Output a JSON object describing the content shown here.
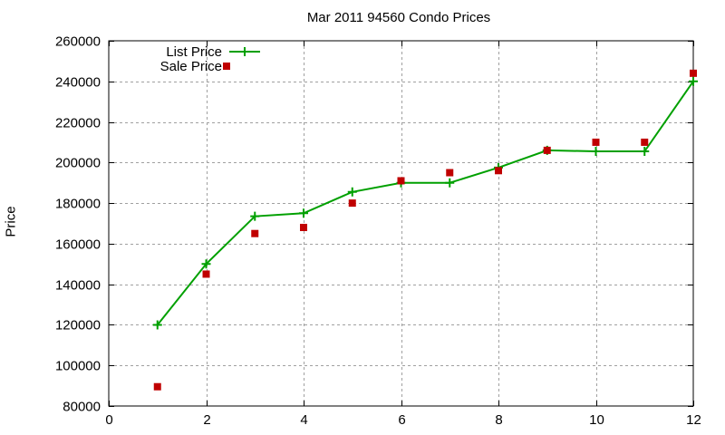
{
  "chart_data": {
    "type": "line",
    "title": "Mar 2011 94560 Condo Prices",
    "xlabel": "",
    "ylabel": "Price",
    "xlim": [
      0,
      12
    ],
    "ylim": [
      80000,
      260000
    ],
    "xticks": [
      0,
      2,
      4,
      6,
      8,
      10,
      12
    ],
    "yticks": [
      80000,
      100000,
      120000,
      140000,
      160000,
      180000,
      200000,
      220000,
      240000,
      260000
    ],
    "grid": true,
    "legend_position": "top-left",
    "x": [
      1,
      2,
      3,
      4,
      5,
      6,
      7,
      8,
      9,
      10,
      11,
      12
    ],
    "series": [
      {
        "name": "List Price",
        "style": "linespoints",
        "marker": "plus",
        "color": "#00a000",
        "values": [
          120000,
          150000,
          173500,
          175000,
          185500,
          190000,
          190000,
          197500,
          206000,
          205500,
          205500,
          240000
        ]
      },
      {
        "name": "Sale Price",
        "style": "points",
        "marker": "square",
        "color": "#c00000",
        "values": [
          89500,
          145000,
          165000,
          168000,
          180000,
          191000,
          195000,
          196000,
          206000,
          210000,
          210000,
          244000
        ]
      }
    ]
  }
}
